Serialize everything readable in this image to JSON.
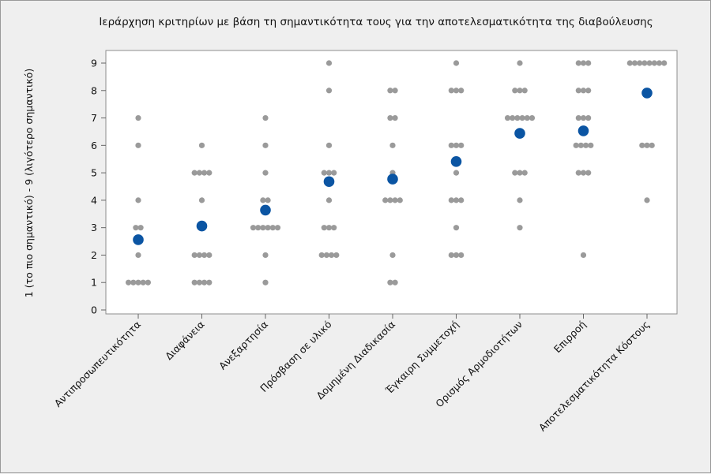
{
  "chart_data": {
    "type": "scatter",
    "title": "Ιεράρχηση κριτηρίων με βάση τη σημαντικότητα τους για την αποτελεσματικότητα της διαβούλευσης",
    "ylabel": "1 (το πιο σημαντικό) - 9 (λιγότερο σημαντικό)",
    "xlabel": "",
    "ylim": [
      0,
      9
    ],
    "y_ticks": [
      0,
      1,
      2,
      3,
      4,
      5,
      6,
      7,
      8,
      9
    ],
    "grid": false,
    "categories": [
      "Αντιπροσωπευτικότητα",
      "Διαφάνεια",
      "Ανεξαρτησία",
      "Πρόσβαση σε υλικό",
      "Δομημένη Διαδικασία",
      "Έγκαιρη Συμμετοχή",
      "Ορισμός Αρμοδιοτήτων",
      "Επιρροή",
      "Αποτελεσματικότητα Κόστους"
    ],
    "series": [
      {
        "role": "individual",
        "color": "#9a9a9a",
        "points": [
          [
            [
              1,
              5
            ],
            [
              2,
              1
            ],
            [
              3,
              2
            ],
            [
              4,
              1
            ],
            [
              6,
              1
            ],
            [
              7,
              1
            ]
          ],
          [
            [
              1,
              4
            ],
            [
              2,
              4
            ],
            [
              4,
              1
            ],
            [
              5,
              4
            ],
            [
              6,
              1
            ]
          ],
          [
            [
              1,
              1
            ],
            [
              2,
              1
            ],
            [
              3,
              6
            ],
            [
              4,
              2
            ],
            [
              5,
              1
            ],
            [
              6,
              1
            ],
            [
              7,
              1
            ]
          ],
          [
            [
              2,
              4
            ],
            [
              3,
              3
            ],
            [
              4,
              1
            ],
            [
              5,
              3
            ],
            [
              6,
              1
            ],
            [
              8,
              1
            ],
            [
              9,
              1
            ]
          ],
          [
            [
              1,
              2
            ],
            [
              2,
              1
            ],
            [
              4,
              4
            ],
            [
              5,
              1
            ],
            [
              6,
              1
            ],
            [
              7,
              2
            ],
            [
              8,
              2
            ]
          ],
          [
            [
              2,
              3
            ],
            [
              3,
              1
            ],
            [
              4,
              3
            ],
            [
              5,
              1
            ],
            [
              6,
              3
            ],
            [
              8,
              3
            ],
            [
              9,
              1
            ]
          ],
          [
            [
              3,
              1
            ],
            [
              4,
              1
            ],
            [
              5,
              3
            ],
            [
              7,
              6
            ],
            [
              8,
              3
            ],
            [
              9,
              1
            ]
          ],
          [
            [
              2,
              1
            ],
            [
              5,
              3
            ],
            [
              6,
              4
            ],
            [
              7,
              3
            ],
            [
              8,
              3
            ],
            [
              9,
              3
            ]
          ],
          [
            [
              4,
              1
            ],
            [
              6,
              3
            ],
            [
              9,
              8
            ]
          ]
        ]
      },
      {
        "role": "mean",
        "color": "#0b55a3",
        "values": [
          2.56,
          3.06,
          3.64,
          4.68,
          4.77,
          5.41,
          6.44,
          6.53,
          7.91
        ]
      }
    ]
  }
}
